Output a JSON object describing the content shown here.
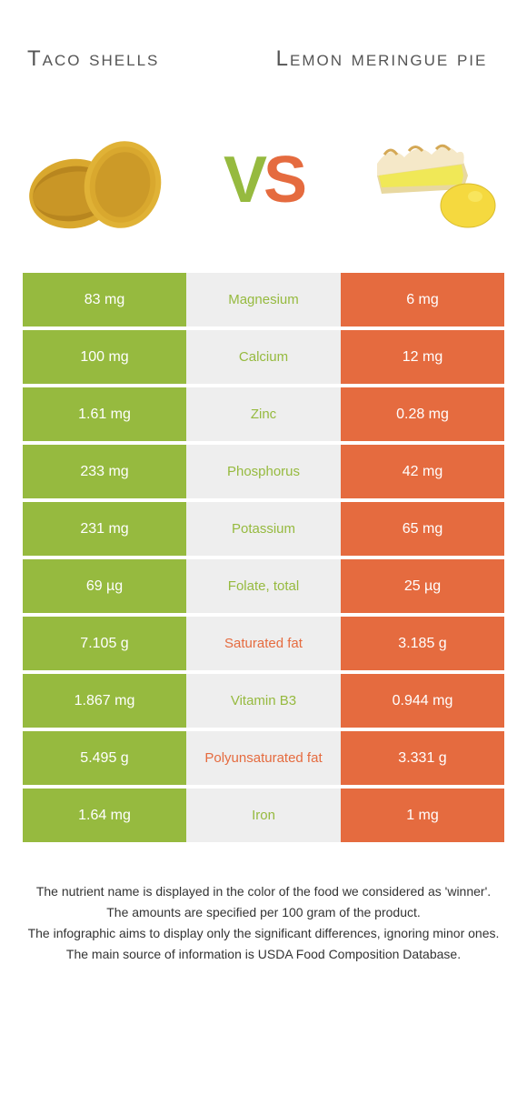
{
  "header": {
    "left_title": "Taco shells",
    "right_title": "Lemon meringue pie",
    "vs_v": "V",
    "vs_s": "S"
  },
  "colors": {
    "green": "#96ba3f",
    "orange": "#e56b3f",
    "mid_bg": "#eeeeee",
    "taco_fill": "#d9a82e",
    "taco_dark": "#b8861f",
    "pie_meringue": "#f5e8c8",
    "pie_meringue_top": "#d4a855",
    "pie_filling": "#f0e857",
    "pie_crust": "#e8d8a0",
    "lemon": "#f5d93f",
    "lemon_shadow": "#d9bc2e"
  },
  "rows": [
    {
      "left": "83 mg",
      "mid": "Magnesium",
      "right": "6 mg",
      "winner": "green"
    },
    {
      "left": "100 mg",
      "mid": "Calcium",
      "right": "12 mg",
      "winner": "green"
    },
    {
      "left": "1.61 mg",
      "mid": "Zinc",
      "right": "0.28 mg",
      "winner": "green"
    },
    {
      "left": "233 mg",
      "mid": "Phosphorus",
      "right": "42 mg",
      "winner": "green"
    },
    {
      "left": "231 mg",
      "mid": "Potassium",
      "right": "65 mg",
      "winner": "green"
    },
    {
      "left": "69 µg",
      "mid": "Folate, total",
      "right": "25 µg",
      "winner": "green"
    },
    {
      "left": "7.105 g",
      "mid": "Saturated fat",
      "right": "3.185 g",
      "winner": "orange"
    },
    {
      "left": "1.867 mg",
      "mid": "Vitamin B3",
      "right": "0.944 mg",
      "winner": "green"
    },
    {
      "left": "5.495 g",
      "mid": "Polyunsaturated fat",
      "right": "3.331 g",
      "winner": "orange"
    },
    {
      "left": "1.64 mg",
      "mid": "Iron",
      "right": "1 mg",
      "winner": "green"
    }
  ],
  "footer": {
    "line1": "The nutrient name is displayed in the color of the food we considered as 'winner'.",
    "line2": "The amounts are specified per 100 gram of the product.",
    "line3": "The infographic aims to display only the significant differences, ignoring minor ones.",
    "line4": "The main source of information is USDA Food Composition Database."
  }
}
